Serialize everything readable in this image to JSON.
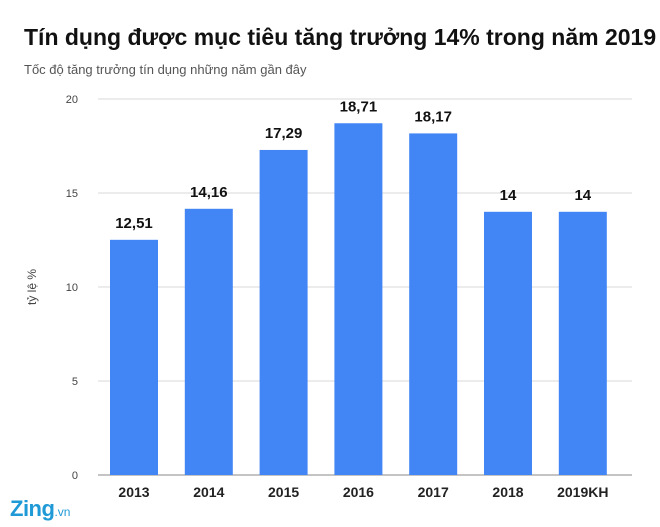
{
  "header": {
    "title": "Tín dụng được mục tiêu tăng trưởng 14% trong năm 2019",
    "subtitle": "Tốc độ tăng trưởng tín dụng những năm gần đây"
  },
  "logo": {
    "brand": "Zing",
    "tld": ".vn"
  },
  "colors": {
    "bar": "#4285f4",
    "grid": "#d9d9d9",
    "axis_text": "#444444",
    "label": "#111111"
  },
  "chart_data": {
    "type": "bar",
    "title": "Tín dụng được mục tiêu tăng trưởng 14% trong năm 2019",
    "subtitle": "Tốc độ tăng trưởng tín dụng những năm gần đây",
    "xlabel": "",
    "ylabel": "tỷ lệ %",
    "ylim": [
      0,
      20
    ],
    "yticks": [
      0,
      5,
      10,
      15,
      20
    ],
    "grid": true,
    "categories": [
      "2013",
      "2014",
      "2015",
      "2016",
      "2017",
      "2018",
      "2019KH"
    ],
    "values": [
      12.51,
      14.16,
      17.29,
      18.71,
      18.17,
      14,
      14
    ],
    "value_labels": [
      "12,51",
      "14,16",
      "17,29",
      "18,71",
      "18,17",
      "14",
      "14"
    ]
  }
}
